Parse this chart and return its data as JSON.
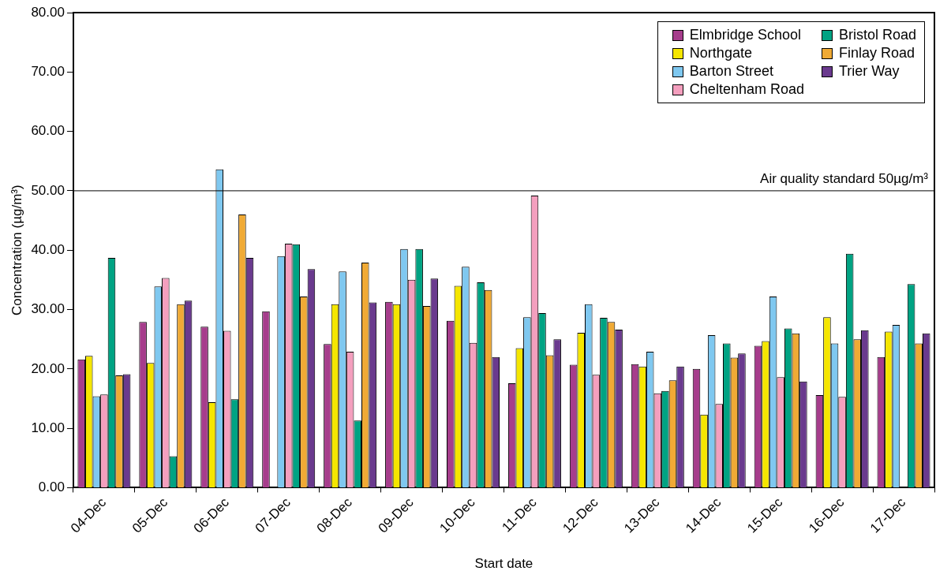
{
  "chart_data": {
    "type": "bar",
    "xlabel": "Start date",
    "ylabel": "Concentration (µg/m³)",
    "categories": [
      "04-Dec",
      "05-Dec",
      "06-Dec",
      "07-Dec",
      "08-Dec",
      "09-Dec",
      "10-Dec",
      "11-Dec",
      "12-Dec",
      "13-Dec",
      "14-Dec",
      "15-Dec",
      "16-Dec",
      "17-Dec"
    ],
    "series": [
      {
        "name": "Elmbridge School",
        "color": "#a63d8c",
        "values": [
          21.6,
          27.9,
          27.1,
          29.7,
          24.2,
          31.3,
          28.1,
          17.6,
          20.7,
          20.8,
          20.0,
          23.9,
          15.6,
          22.0
        ]
      },
      {
        "name": "Northgate",
        "color": "#f5e600",
        "values": [
          22.2,
          21.0,
          14.4,
          null,
          30.9,
          30.9,
          34.0,
          23.5,
          26.1,
          20.4,
          12.3,
          24.7,
          28.7,
          26.3
        ]
      },
      {
        "name": "Barton Street",
        "color": "#7fc8f0",
        "values": [
          15.4,
          33.9,
          53.6,
          39.0,
          36.4,
          40.2,
          37.2,
          28.7,
          30.9,
          22.9,
          25.7,
          32.2,
          24.3,
          27.4
        ]
      },
      {
        "name": "Cheltenham Road",
        "color": "#f49fbe",
        "values": [
          15.7,
          35.3,
          26.4,
          41.1,
          22.9,
          35.0,
          24.4,
          49.2,
          19.0,
          15.9,
          14.1,
          18.6,
          15.3,
          null
        ]
      },
      {
        "name": "Bristol Road",
        "color": "#00a383",
        "values": [
          38.7,
          5.3,
          14.9,
          41.0,
          11.3,
          40.2,
          34.6,
          29.4,
          28.6,
          16.3,
          24.3,
          26.8,
          39.4,
          34.3
        ]
      },
      {
        "name": "Finlay Road",
        "color": "#f0aa35",
        "values": [
          18.9,
          30.9,
          46.0,
          32.2,
          37.9,
          30.6,
          33.3,
          22.3,
          27.9,
          18.1,
          21.9,
          26.0,
          25.0,
          24.3
        ]
      },
      {
        "name": "Trier Way",
        "color": "#6a3a8e",
        "values": [
          19.1,
          31.5,
          38.7,
          36.8,
          31.2,
          35.2,
          22.0,
          25.0,
          26.6,
          20.4,
          22.6,
          17.9,
          26.5,
          26.0
        ]
      }
    ],
    "ylim": [
      0,
      80
    ],
    "yticks": [
      {
        "value": 0,
        "label": "0.00"
      },
      {
        "value": 10,
        "label": "10.00"
      },
      {
        "value": 20,
        "label": "20.00"
      },
      {
        "value": 30,
        "label": "30.00"
      },
      {
        "value": 40,
        "label": "40.00"
      },
      {
        "value": 50,
        "label": "50.00"
      },
      {
        "value": 60,
        "label": "60.00"
      },
      {
        "value": 70,
        "label": "70.00"
      },
      {
        "value": 80,
        "label": "80.00"
      }
    ],
    "ref_lines": [
      {
        "axis": "y",
        "value": 50,
        "label": "Air quality standard 50µg/m³",
        "color": "#000000"
      }
    ],
    "grid": false,
    "legend": "top right"
  }
}
